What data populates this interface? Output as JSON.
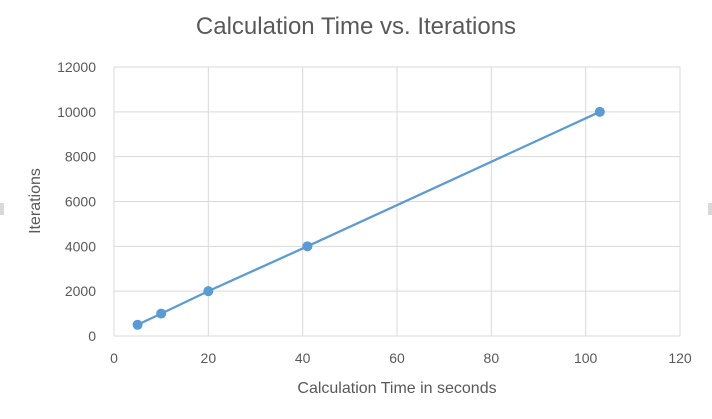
{
  "chart_data": {
    "type": "scatter",
    "title": "Calculation Time vs. Iterations",
    "xlabel": "Calculation Time in seconds",
    "ylabel": "Iterations",
    "xlim": [
      0,
      120
    ],
    "ylim": [
      0,
      12000
    ],
    "x_ticks": [
      0,
      20,
      40,
      60,
      80,
      100,
      120
    ],
    "y_ticks": [
      0,
      2000,
      4000,
      6000,
      8000,
      10000,
      12000
    ],
    "grid": true,
    "legend": "none",
    "series": [
      {
        "x": [
          5,
          10,
          20,
          41,
          103
        ],
        "y": [
          500,
          1000,
          2000,
          4000,
          10000
        ],
        "markers": true,
        "lines": true
      }
    ],
    "colors": {
      "series": "#5b9bd5",
      "grid": "#d9d9d9",
      "text": "#595959"
    }
  }
}
